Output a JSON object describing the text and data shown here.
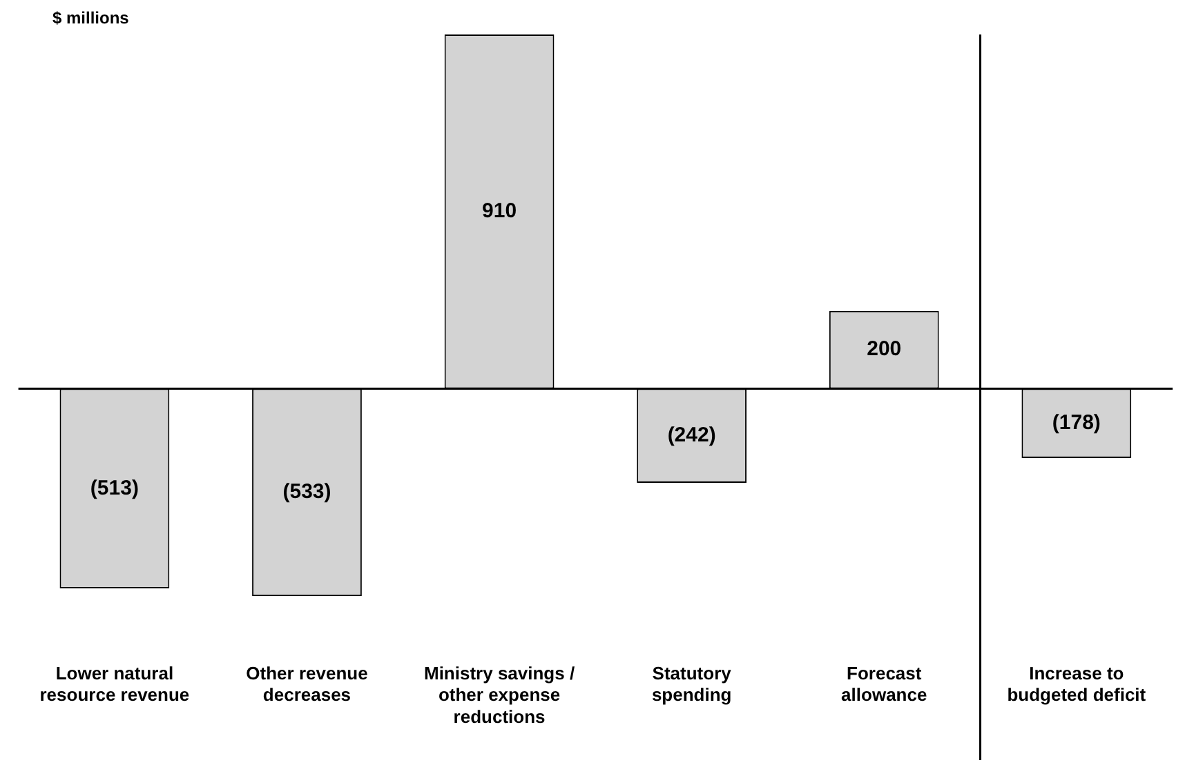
{
  "chart_data": {
    "type": "bar",
    "ylabel": "$ millions",
    "categories": [
      "Lower natural resource revenue",
      "Other revenue decreases",
      "Ministry savings / other expense reductions",
      "Statutory spending",
      "Forecast allowance",
      "Increase to budgeted deficit"
    ],
    "values": [
      -513,
      -533,
      910,
      -242,
      200,
      -178
    ],
    "value_labels": [
      "(513)",
      "(533)",
      "910",
      "(242)",
      "200",
      "(178)"
    ],
    "color": "#d3d3d3",
    "grid": false,
    "legend": false
  }
}
